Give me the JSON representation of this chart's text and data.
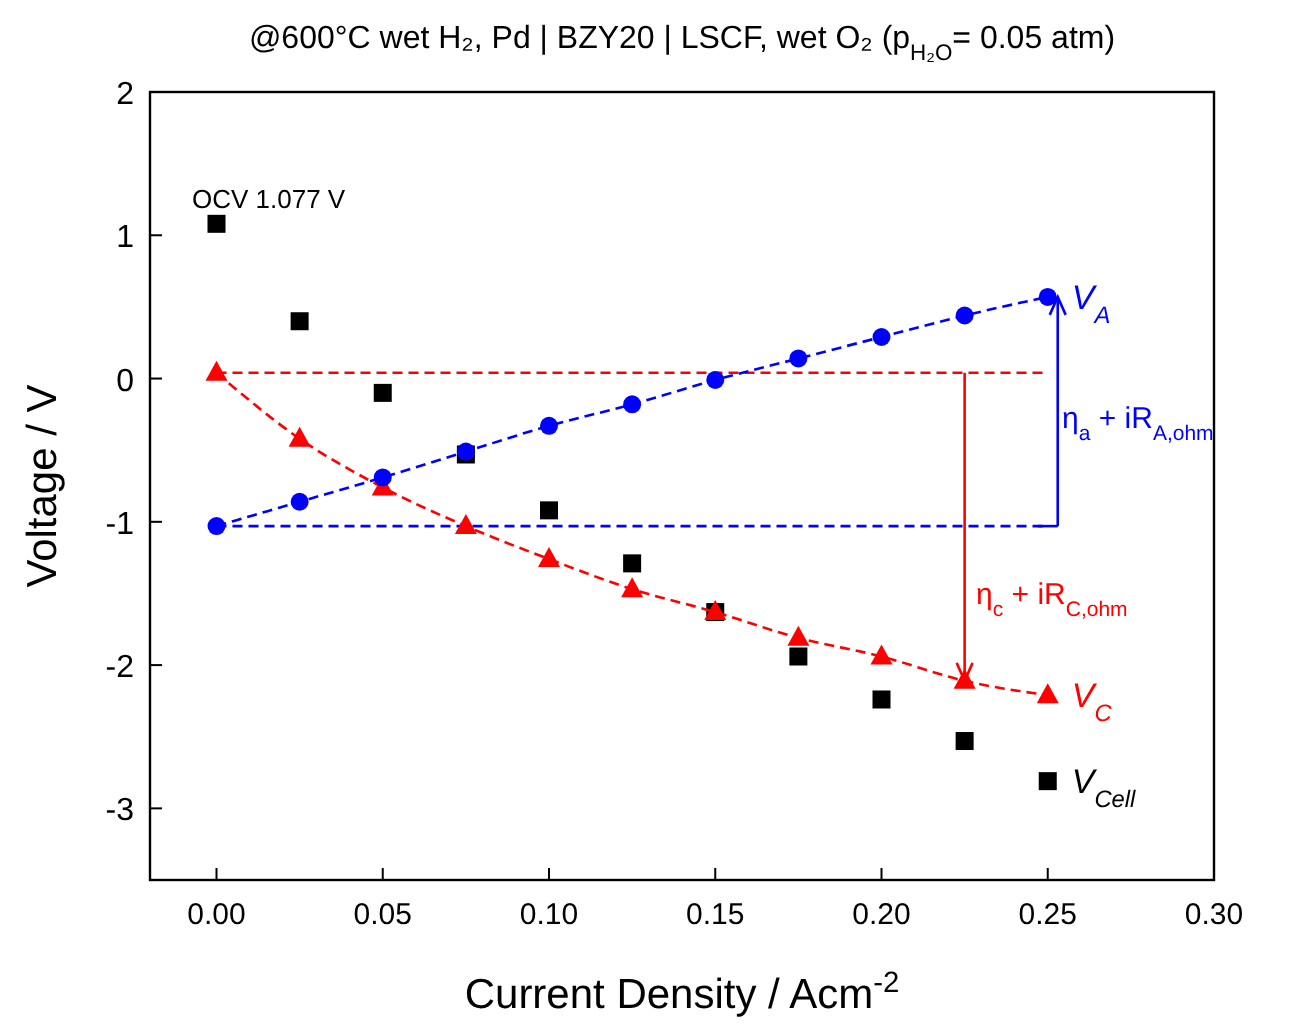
{
  "chart_data": {
    "type": "line",
    "title": "@600°C  wet H₂, Pd | BZY20 | LSCF, wet O₂ (p$_{H₂O}$= 0.05 atm)",
    "xlabel": "Current Density / Acm$^{-2}$",
    "ylabel": "Voltage / V",
    "x": [
      0,
      0.025,
      0.05,
      0.075,
      0.1,
      0.125,
      0.15,
      0.175,
      0.2,
      0.225,
      0.25
    ],
    "series": [
      {
        "name": "V$_{A}$",
        "color": "#0000ff",
        "marker": "circle",
        "line_style": "dashed",
        "values": [
          -1.03,
          -0.86,
          -0.69,
          -0.51,
          -0.33,
          -0.18,
          -0.01,
          0.14,
          0.29,
          0.44,
          0.57
        ]
      },
      {
        "name": "V$_{C}$",
        "color": "#ff0000",
        "marker": "triangle",
        "line_style": "dashed",
        "values": [
          0.04,
          -0.42,
          -0.76,
          -1.03,
          -1.26,
          -1.47,
          -1.63,
          -1.81,
          -1.94,
          -2.11,
          -2.21
        ]
      },
      {
        "name": "V$_{Cell}$",
        "color": "#000000",
        "type": "scatter",
        "marker": "square",
        "values": [
          1.08,
          0.4,
          -0.1,
          -0.53,
          -0.92,
          -1.29,
          -1.63,
          -1.94,
          -2.24,
          -2.53,
          -2.81
        ]
      }
    ],
    "ref_lines": [
      {
        "axis": "y",
        "value": -1.03,
        "color": "#0000ff",
        "line_style": "dashed"
      },
      {
        "axis": "y",
        "value": 0.04,
        "color": "#ff0000",
        "line_style": "dashed"
      }
    ],
    "annotations": [
      "OCV 1.077 V",
      "η$_{a}$ + iR$_{A,ohm}$",
      "η$_{c}$ + iR$_{C,ohm}$"
    ],
    "xlim": [
      -0.02,
      0.3
    ],
    "xticks": [
      {
        "value": 0,
        "label": "0.00"
      },
      {
        "value": 0.05,
        "label": "0.05"
      },
      {
        "value": 0.1,
        "label": "0.10"
      },
      {
        "value": 0.15,
        "label": "0.15"
      },
      {
        "value": 0.2,
        "label": "0.20"
      },
      {
        "value": 0.25,
        "label": "0.25"
      },
      {
        "value": 0.3,
        "label": "0.30"
      }
    ],
    "ylim": [
      -3.5,
      2
    ],
    "yticks": [
      -3,
      -2,
      -1,
      0,
      1,
      2
    ],
    "grid": false
  }
}
